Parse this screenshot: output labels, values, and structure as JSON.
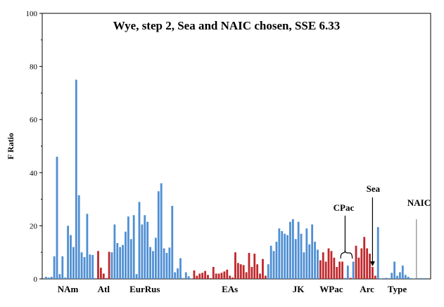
{
  "chart_data": {
    "type": "bar",
    "title": "Wye, step 2, Sea and NAIC chosen, SSE 6.33",
    "ylabel": "F Ratio",
    "xlabel": "",
    "ylim": [
      0,
      100
    ],
    "yticks": [
      0,
      20,
      40,
      60,
      80,
      100
    ],
    "grid": false,
    "colors": {
      "blue": "#4f8fd3",
      "red": "#c0282c",
      "gray": "#8a8a8a"
    },
    "bars": [
      {
        "v": 0.8,
        "c": "blue"
      },
      {
        "v": 0.5,
        "c": "blue"
      },
      {
        "v": 0.8,
        "c": "blue"
      },
      {
        "v": 8.5,
        "c": "blue"
      },
      {
        "v": 46,
        "c": "blue"
      },
      {
        "v": 1.8,
        "c": "blue"
      },
      {
        "v": 8.5,
        "c": "blue"
      },
      {
        "v": 0.5,
        "c": "blue"
      },
      {
        "v": 20,
        "c": "blue"
      },
      {
        "v": 16.5,
        "c": "blue"
      },
      {
        "v": 12,
        "c": "blue"
      },
      {
        "v": 75,
        "c": "blue"
      },
      {
        "v": 31.5,
        "c": "blue"
      },
      {
        "v": 10,
        "c": "blue"
      },
      {
        "v": 8.2,
        "c": "blue"
      },
      {
        "v": 24.5,
        "c": "blue"
      },
      {
        "v": 9.2,
        "c": "blue"
      },
      {
        "v": 9,
        "c": "blue"
      },
      {
        "v": 0.3,
        "c": "blue"
      },
      {
        "v": 10.5,
        "c": "red"
      },
      {
        "v": 4.2,
        "c": "red"
      },
      {
        "v": 2,
        "c": "red"
      },
      {
        "v": 0.3,
        "c": "red"
      },
      {
        "v": 10.2,
        "c": "red"
      },
      {
        "v": 10,
        "c": "blue"
      },
      {
        "v": 20.5,
        "c": "blue"
      },
      {
        "v": 13.5,
        "c": "blue"
      },
      {
        "v": 12,
        "c": "blue"
      },
      {
        "v": 12.8,
        "c": "blue"
      },
      {
        "v": 17.8,
        "c": "blue"
      },
      {
        "v": 23.5,
        "c": "blue"
      },
      {
        "v": 15,
        "c": "blue"
      },
      {
        "v": 24,
        "c": "blue"
      },
      {
        "v": 1.8,
        "c": "blue"
      },
      {
        "v": 29,
        "c": "blue"
      },
      {
        "v": 20.5,
        "c": "blue"
      },
      {
        "v": 24,
        "c": "blue"
      },
      {
        "v": 21.5,
        "c": "blue"
      },
      {
        "v": 12,
        "c": "blue"
      },
      {
        "v": 10.5,
        "c": "blue"
      },
      {
        "v": 15.5,
        "c": "blue"
      },
      {
        "v": 33,
        "c": "blue"
      },
      {
        "v": 36,
        "c": "blue"
      },
      {
        "v": 11.5,
        "c": "blue"
      },
      {
        "v": 9.8,
        "c": "blue"
      },
      {
        "v": 11.8,
        "c": "blue"
      },
      {
        "v": 27.5,
        "c": "blue"
      },
      {
        "v": 2.5,
        "c": "blue"
      },
      {
        "v": 4,
        "c": "blue"
      },
      {
        "v": 7.8,
        "c": "blue"
      },
      {
        "v": 0.3,
        "c": "blue"
      },
      {
        "v": 2.5,
        "c": "blue"
      },
      {
        "v": 1,
        "c": "blue"
      },
      {
        "v": 0.2,
        "c": "blue"
      },
      {
        "v": 3.2,
        "c": "red"
      },
      {
        "v": 1.2,
        "c": "red"
      },
      {
        "v": 2,
        "c": "red"
      },
      {
        "v": 2.3,
        "c": "red"
      },
      {
        "v": 3,
        "c": "red"
      },
      {
        "v": 1.5,
        "c": "red"
      },
      {
        "v": 0.3,
        "c": "red"
      },
      {
        "v": 4.5,
        "c": "red"
      },
      {
        "v": 2,
        "c": "red"
      },
      {
        "v": 2,
        "c": "red"
      },
      {
        "v": 2.3,
        "c": "red"
      },
      {
        "v": 2.8,
        "c": "red"
      },
      {
        "v": 3.5,
        "c": "red"
      },
      {
        "v": 1.2,
        "c": "red"
      },
      {
        "v": 0.5,
        "c": "red"
      },
      {
        "v": 10,
        "c": "red"
      },
      {
        "v": 6,
        "c": "red"
      },
      {
        "v": 5.5,
        "c": "red"
      },
      {
        "v": 5.2,
        "c": "red"
      },
      {
        "v": 2.5,
        "c": "red"
      },
      {
        "v": 9.8,
        "c": "red"
      },
      {
        "v": 4.5,
        "c": "red"
      },
      {
        "v": 9.5,
        "c": "red"
      },
      {
        "v": 5.5,
        "c": "red"
      },
      {
        "v": 2,
        "c": "red"
      },
      {
        "v": 7.5,
        "c": "red"
      },
      {
        "v": 1.2,
        "c": "red"
      },
      {
        "v": 5.5,
        "c": "blue"
      },
      {
        "v": 12.5,
        "c": "blue"
      },
      {
        "v": 10.5,
        "c": "blue"
      },
      {
        "v": 14,
        "c": "blue"
      },
      {
        "v": 19,
        "c": "blue"
      },
      {
        "v": 18,
        "c": "blue"
      },
      {
        "v": 17,
        "c": "blue"
      },
      {
        "v": 16.5,
        "c": "blue"
      },
      {
        "v": 21.5,
        "c": "blue"
      },
      {
        "v": 22.5,
        "c": "blue"
      },
      {
        "v": 15,
        "c": "blue"
      },
      {
        "v": 21.5,
        "c": "blue"
      },
      {
        "v": 17,
        "c": "blue"
      },
      {
        "v": 10,
        "c": "blue"
      },
      {
        "v": 19,
        "c": "blue"
      },
      {
        "v": 13,
        "c": "blue"
      },
      {
        "v": 20.5,
        "c": "blue"
      },
      {
        "v": 14,
        "c": "blue"
      },
      {
        "v": 11,
        "c": "blue"
      },
      {
        "v": 7,
        "c": "red"
      },
      {
        "v": 10,
        "c": "red"
      },
      {
        "v": 6.5,
        "c": "red"
      },
      {
        "v": 11.5,
        "c": "red"
      },
      {
        "v": 10.5,
        "c": "red"
      },
      {
        "v": 8,
        "c": "red"
      },
      {
        "v": 4.5,
        "c": "red"
      },
      {
        "v": 6.5,
        "c": "red"
      },
      {
        "v": 6.5,
        "c": "red"
      },
      {
        "v": 0.4,
        "c": "blue"
      },
      {
        "v": 5,
        "c": "blue"
      },
      {
        "v": 0.4,
        "c": "red"
      },
      {
        "v": 6.5,
        "c": "blue"
      },
      {
        "v": 12.5,
        "c": "red"
      },
      {
        "v": 8,
        "c": "red"
      },
      {
        "v": 11.5,
        "c": "red"
      },
      {
        "v": 15.8,
        "c": "red"
      },
      {
        "v": 11.5,
        "c": "red"
      },
      {
        "v": 9.5,
        "c": "red"
      },
      {
        "v": 4.5,
        "c": "red"
      },
      {
        "v": 1.2,
        "c": "red"
      },
      {
        "v": 19.5,
        "c": "blue"
      },
      {
        "v": 0.2,
        "c": "blue"
      },
      {
        "v": 0.3,
        "c": "blue"
      },
      {
        "v": 0.4,
        "c": "blue"
      },
      {
        "v": 0.3,
        "c": "blue"
      },
      {
        "v": 2.3,
        "c": "blue"
      },
      {
        "v": 6.5,
        "c": "blue"
      },
      {
        "v": 1.2,
        "c": "blue"
      },
      {
        "v": 2.5,
        "c": "blue"
      },
      {
        "v": 5,
        "c": "blue"
      },
      {
        "v": 1.5,
        "c": "blue"
      },
      {
        "v": 0.8,
        "c": "blue"
      },
      {
        "v": 0.3,
        "c": "blue"
      },
      {
        "v": 0.2,
        "c": "blue"
      },
      {
        "v": 22.5,
        "c": "gray"
      },
      {
        "v": 0.3,
        "c": "blue"
      },
      {
        "v": 0.3,
        "c": "blue"
      },
      {
        "v": 0.3,
        "c": "blue"
      }
    ],
    "region_labels": [
      {
        "text": "NAm",
        "at_bar": 8
      },
      {
        "text": "Atl",
        "at_bar": 21
      },
      {
        "text": "EurRus",
        "at_bar": 36
      },
      {
        "text": "EAs",
        "at_bar": 67
      },
      {
        "text": "JK",
        "at_bar": 92
      },
      {
        "text": "WPac",
        "at_bar": 104
      },
      {
        "text": "Arc",
        "at_bar": 117
      },
      {
        "text": "Type",
        "at_bar": 128
      }
    ],
    "annotations": [
      {
        "text": "CPac",
        "target_bar": 109
      },
      {
        "text": "Sea",
        "target_bar": 119
      },
      {
        "text": "NAIC",
        "target_bar": 138
      }
    ]
  }
}
